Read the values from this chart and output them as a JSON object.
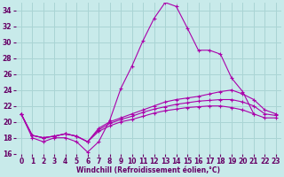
{
  "xlabel": "Windchill (Refroidissement éolien,°C)",
  "bg_color": "#c8eaea",
  "grid_color": "#aad4d4",
  "line_color": "#aa00aa",
  "xlim": [
    -0.5,
    23.5
  ],
  "ylim": [
    16,
    35
  ],
  "yticks": [
    16,
    18,
    20,
    22,
    24,
    26,
    28,
    30,
    32,
    34
  ],
  "xticks": [
    0,
    1,
    2,
    3,
    4,
    5,
    6,
    7,
    8,
    9,
    10,
    11,
    12,
    13,
    14,
    15,
    16,
    17,
    18,
    19,
    20,
    21,
    22,
    23
  ],
  "series": [
    [
      21.0,
      18.0,
      17.5,
      18.0,
      18.0,
      17.5,
      16.2,
      17.5,
      20.2,
      24.2,
      27.0,
      30.2,
      33.0,
      35.0,
      34.5,
      31.8,
      29.0,
      29.0,
      28.5,
      25.5,
      23.8,
      21.0,
      null,
      null
    ],
    [
      21.0,
      18.3,
      18.0,
      18.2,
      18.5,
      18.2,
      17.5,
      19.2,
      20.0,
      20.5,
      21.0,
      21.5,
      22.0,
      22.5,
      22.8,
      23.0,
      23.2,
      23.5,
      23.8,
      24.0,
      23.5,
      22.8,
      21.5,
      21.0
    ],
    [
      21.0,
      18.3,
      18.0,
      18.2,
      18.5,
      18.2,
      17.5,
      19.0,
      19.8,
      20.3,
      20.7,
      21.2,
      21.6,
      21.9,
      22.2,
      22.4,
      22.6,
      22.7,
      22.8,
      22.8,
      22.5,
      22.0,
      21.0,
      20.8
    ],
    [
      21.0,
      18.3,
      18.0,
      18.2,
      18.5,
      18.2,
      17.5,
      18.8,
      19.5,
      20.0,
      20.3,
      20.7,
      21.1,
      21.4,
      21.6,
      21.8,
      21.9,
      22.0,
      22.0,
      21.8,
      21.5,
      21.0,
      20.5,
      20.5
    ]
  ]
}
